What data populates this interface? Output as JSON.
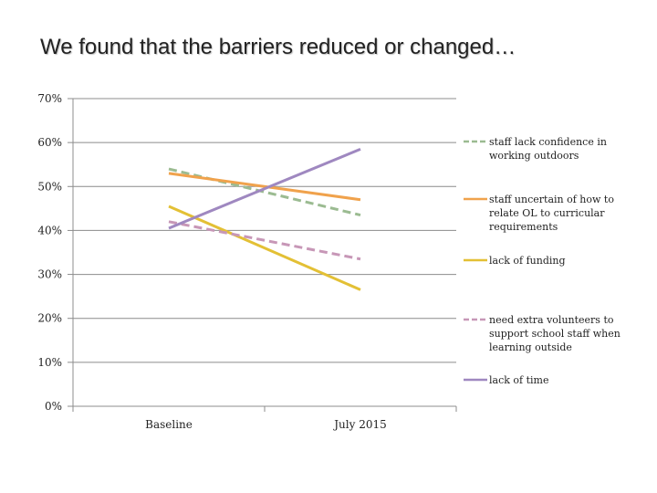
{
  "title": "We found that the barriers reduced or changed…",
  "chart_data": {
    "type": "line",
    "categories": [
      "Baseline",
      "July 2015"
    ],
    "ylim": [
      0,
      70
    ],
    "yticks": [
      "0%",
      "10%",
      "20%",
      "30%",
      "40%",
      "50%",
      "60%",
      "70%"
    ],
    "legend_position": "right",
    "grid": true,
    "series": [
      {
        "name": "staff lack confidence in working outdoors",
        "values": [
          54,
          43.5
        ],
        "color": "#9bbb91",
        "dashed": true
      },
      {
        "name": "staff uncertain of how to relate OL to curricular requirements",
        "values": [
          53,
          47
        ],
        "color": "#f0a24c",
        "dashed": false
      },
      {
        "name": "lack of funding",
        "values": [
          45.5,
          26.5
        ],
        "color": "#e3c035",
        "dashed": false
      },
      {
        "name": "need extra volunteers to support school staff when learning outside",
        "values": [
          42,
          33.5
        ],
        "color": "#c797b7",
        "dashed": true
      },
      {
        "name": "lack of time",
        "values": [
          40.5,
          58.5
        ],
        "color": "#9f88c0",
        "dashed": false
      }
    ]
  }
}
